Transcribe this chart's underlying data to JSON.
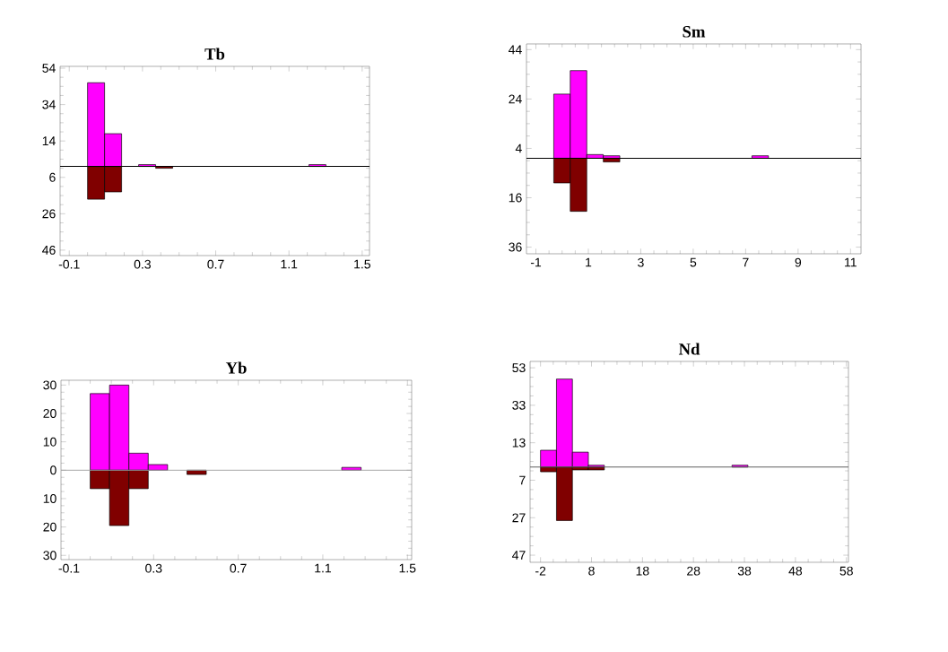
{
  "chart_data": [
    {
      "type": "histogram",
      "title": "Tb",
      "bins": [
        0,
        0.093,
        0.186,
        0.279,
        0.372,
        0.465,
        0.558,
        0.651,
        0.744,
        0.837,
        0.93,
        1.023,
        1.116,
        1.209,
        1.302
      ],
      "series": [
        {
          "color": "#ff00ff",
          "values": [
            46,
            18,
            0,
            1,
            0,
            0,
            0,
            0,
            0,
            0,
            0,
            0,
            0,
            1
          ]
        },
        {
          "color": "#800000",
          "values": [
            -18,
            -14,
            0,
            0,
            -1,
            0,
            0,
            0,
            0,
            0,
            0,
            0,
            0,
            0
          ]
        }
      ],
      "xlim": [
        -0.15,
        1.54
      ],
      "xticks": [
        -0.1,
        0.3,
        0.7,
        1.1,
        1.5
      ],
      "ylim": [
        -49,
        55
      ],
      "yticks": [
        54,
        34,
        14,
        {
          "value": -6,
          "label": "6"
        },
        {
          "value": -26,
          "label": "26"
        },
        {
          "value": -46,
          "label": "46"
        }
      ],
      "ref_lines": [
        {
          "axis": "y",
          "value": 0,
          "color": "#000000"
        }
      ]
    },
    {
      "type": "histogram",
      "title": "Sm",
      "bins": [
        -0.32,
        0.31,
        0.94,
        1.57,
        2.2,
        2.83,
        3.46,
        4.09,
        4.72,
        5.35,
        5.98,
        6.61,
        7.24,
        7.87
      ],
      "series": [
        {
          "color": "#ff00ff",
          "values": [
            26,
            35.5,
            1.5,
            1,
            0,
            0,
            0,
            0,
            0,
            0,
            0,
            0,
            1
          ]
        },
        {
          "color": "#800000",
          "values": [
            -10,
            -21.5,
            0,
            -1.5,
            0,
            0,
            0,
            0,
            0,
            0,
            0,
            0,
            0
          ]
        }
      ],
      "xlim": [
        -1.36,
        11.4
      ],
      "xticks": [
        -1,
        1,
        3,
        5,
        7,
        9,
        11
      ],
      "ylim": [
        -38.7,
        46.3
      ],
      "yticks": [
        44,
        24,
        4,
        {
          "value": -16,
          "label": "16"
        },
        {
          "value": -36,
          "label": "36"
        }
      ],
      "ref_lines": [
        {
          "axis": "y",
          "value": 0,
          "color": "#000000"
        }
      ]
    },
    {
      "type": "histogram",
      "title": "Yb",
      "bins": [
        0,
        0.0915,
        0.183,
        0.2745,
        0.366,
        0.4575,
        0.549,
        0.6405,
        0.732,
        0.8235,
        0.915,
        1.0065,
        1.098,
        1.1895,
        1.281
      ],
      "series": [
        {
          "color": "#ff00ff",
          "values": [
            27,
            30,
            6,
            2,
            0,
            0,
            0,
            0,
            0,
            0,
            0,
            0,
            0,
            1
          ]
        },
        {
          "color": "#800000",
          "values": [
            -6.5,
            -19.5,
            -6.5,
            0,
            0,
            -1.5,
            0,
            0,
            0,
            0,
            0,
            0,
            0,
            0
          ]
        }
      ],
      "xlim": [
        -0.138,
        1.52
      ],
      "xticks": [
        -0.1,
        0.3,
        0.7,
        1.1,
        1.5
      ],
      "ylim": [
        -31.5,
        31.7
      ],
      "yticks": [
        30,
        20,
        10,
        0,
        {
          "value": -10,
          "label": "10"
        },
        {
          "value": -20,
          "label": "20"
        },
        {
          "value": -30,
          "label": "30"
        }
      ],
      "ref_lines": [
        {
          "axis": "y",
          "value": 0,
          "color": "#a0a0a0"
        }
      ]
    },
    {
      "type": "histogram",
      "title": "Nd",
      "bins": [
        -2,
        1.13,
        4.26,
        7.39,
        10.52,
        13.65,
        16.78,
        19.91,
        23.04,
        26.17,
        29.3,
        32.43,
        35.56,
        38.69
      ],
      "series": [
        {
          "color": "#ff00ff",
          "values": [
            9,
            47,
            8,
            1,
            0,
            0,
            0,
            0,
            0,
            0,
            0,
            0,
            1
          ]
        },
        {
          "color": "#800000",
          "values": [
            -2.5,
            -28.5,
            -1.5,
            -1.5,
            0,
            0,
            0,
            0,
            0,
            0,
            0,
            0,
            0
          ]
        }
      ],
      "xlim": [
        -4.05,
        58.4
      ],
      "xticks": [
        -2,
        8,
        18,
        28,
        38,
        48,
        58
      ],
      "ylim": [
        -50.8,
        56.4
      ],
      "yticks": [
        53,
        33,
        13,
        {
          "value": -7,
          "label": "7"
        },
        {
          "value": -27,
          "label": "27"
        },
        {
          "value": -47,
          "label": "47"
        }
      ],
      "ref_lines": [
        {
          "axis": "y",
          "value": 0,
          "color": "#606060"
        }
      ]
    }
  ]
}
